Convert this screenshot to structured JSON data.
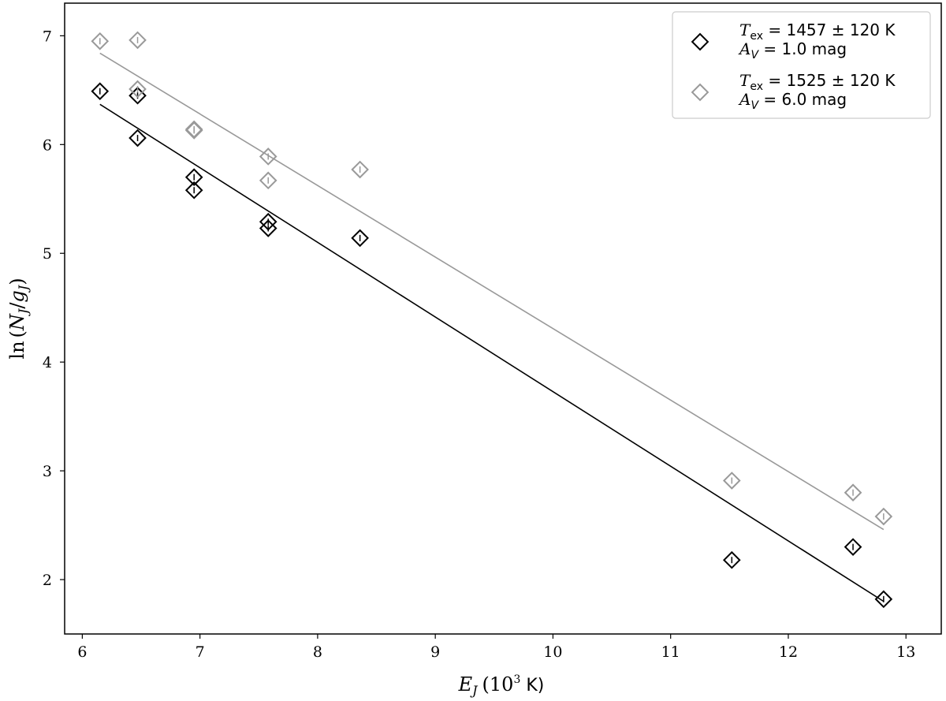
{
  "chart_data": {
    "type": "scatter",
    "title": "",
    "xlabel": "E_J (10³ K)",
    "xlabel_parts": {
      "symbol": "E",
      "subscript": "J",
      "unit_prefix": "(10",
      "unit_exp": "3",
      "unit_suffix": " K)"
    },
    "ylabel": "ln(N_J/g_J)",
    "ylabel_parts": {
      "fn": "ln",
      "open": "(",
      "n": "N",
      "n_sub": "J",
      "slash": "/",
      "g": "g",
      "g_sub": "J",
      "close": ")"
    },
    "xlim": [
      5.85,
      13.3
    ],
    "ylim": [
      1.5,
      7.3
    ],
    "xticks": [
      6,
      7,
      8,
      9,
      10,
      11,
      12,
      13
    ],
    "yticks": [
      2,
      3,
      4,
      5,
      6,
      7
    ],
    "legend_position": "top-right",
    "series": [
      {
        "name": "T_ex = 1457 ± 120 K, A_V = 1.0 mag",
        "legend_line1": {
          "symbol": "T",
          "sub": "ex",
          "text": " = 1457 ± 120 K"
        },
        "legend_line2": {
          "symbol": "A",
          "sub": "V",
          "text": " = 1.0 mag"
        },
        "color": "#000000",
        "x": [
          6.15,
          6.47,
          6.47,
          6.95,
          6.95,
          7.58,
          7.58,
          8.36,
          11.52,
          12.55,
          12.81
        ],
        "y": [
          6.49,
          6.45,
          6.06,
          5.7,
          5.58,
          5.29,
          5.23,
          5.14,
          2.18,
          2.3,
          1.82
        ],
        "fit": {
          "x": [
            6.15,
            12.81
          ],
          "y": [
            6.37,
            1.8
          ]
        }
      },
      {
        "name": "T_ex = 1525 ± 120 K, A_V = 6.0 mag",
        "legend_line1": {
          "symbol": "T",
          "sub": "ex",
          "text": " = 1525 ± 120 K"
        },
        "legend_line2": {
          "symbol": "A",
          "sub": "V",
          "text": " = 6.0 mag"
        },
        "color": "#999999",
        "x": [
          6.15,
          6.47,
          6.47,
          6.95,
          6.95,
          7.58,
          7.58,
          8.36,
          11.52,
          12.55,
          12.81
        ],
        "y": [
          6.95,
          6.96,
          6.51,
          6.14,
          6.13,
          5.89,
          5.67,
          5.77,
          2.91,
          2.8,
          2.58
        ],
        "fit": {
          "x": [
            6.15,
            12.81
          ],
          "y": [
            6.84,
            2.46
          ]
        }
      }
    ]
  }
}
